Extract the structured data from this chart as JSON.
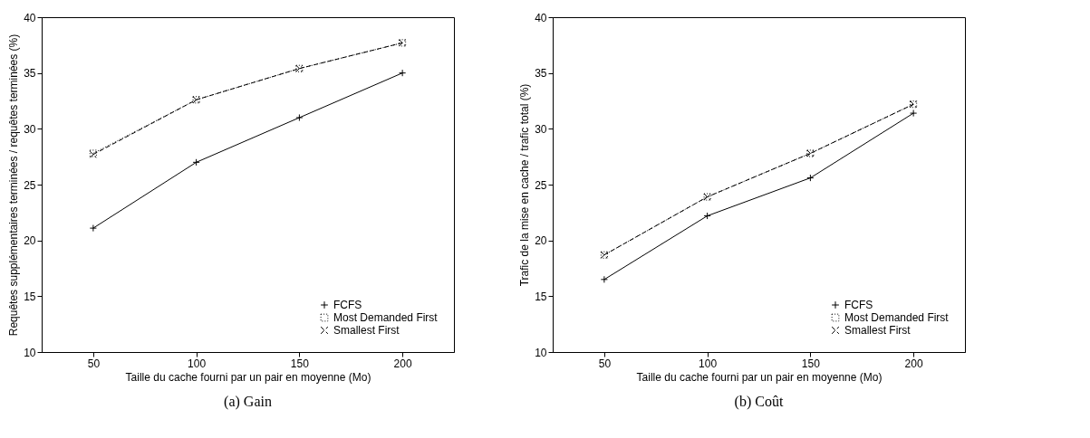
{
  "chart_data": [
    {
      "type": "line",
      "title": "(a) Gain",
      "xlabel": "Taille du cache fourni par un pair en moyenne (Mo)",
      "ylabel": "Requêtes supplémentaires terminées / requêtes terminées (%)",
      "categories": [
        "50",
        "100",
        "150",
        "200"
      ],
      "ylim": [
        10,
        40
      ],
      "yticks": [
        10,
        15,
        20,
        25,
        30,
        35,
        40
      ],
      "grid": false,
      "legend": "bottom right",
      "series": [
        {
          "name": "FCFS",
          "color": "#000000",
          "marker": "plus",
          "line_style": "solid",
          "values": [
            21.1,
            27.0,
            31.0,
            35.0
          ]
        },
        {
          "name": "Most Demanded First",
          "color": "#000000",
          "marker": "square",
          "line_style": "dotted",
          "values": [
            27.8,
            32.6,
            35.4,
            37.7
          ]
        },
        {
          "name": "Smallest First",
          "color": "#000000",
          "marker": "cross",
          "line_style": "dashed",
          "values": [
            27.7,
            32.6,
            35.4,
            37.7
          ]
        }
      ]
    },
    {
      "type": "line",
      "title": "(b) Coût",
      "xlabel": "Taille du cache fourni par un pair en moyenne (Mo)",
      "ylabel": "Trafic de la mise en cache / trafic total (%)",
      "categories": [
        "50",
        "100",
        "150",
        "200"
      ],
      "ylim": [
        10,
        40
      ],
      "yticks": [
        10,
        15,
        20,
        25,
        30,
        35,
        40
      ],
      "grid": false,
      "legend": "bottom right",
      "series": [
        {
          "name": "FCFS",
          "color": "#000000",
          "marker": "plus",
          "line_style": "solid",
          "values": [
            16.5,
            22.2,
            25.6,
            31.4
          ]
        },
        {
          "name": "Most Demanded First",
          "color": "#000000",
          "marker": "square",
          "line_style": "dotted",
          "values": [
            18.7,
            23.9,
            27.8,
            32.2
          ]
        },
        {
          "name": "Smallest First",
          "color": "#000000",
          "marker": "cross",
          "line_style": "dashed",
          "values": [
            18.7,
            23.9,
            27.8,
            32.2
          ]
        }
      ]
    }
  ]
}
